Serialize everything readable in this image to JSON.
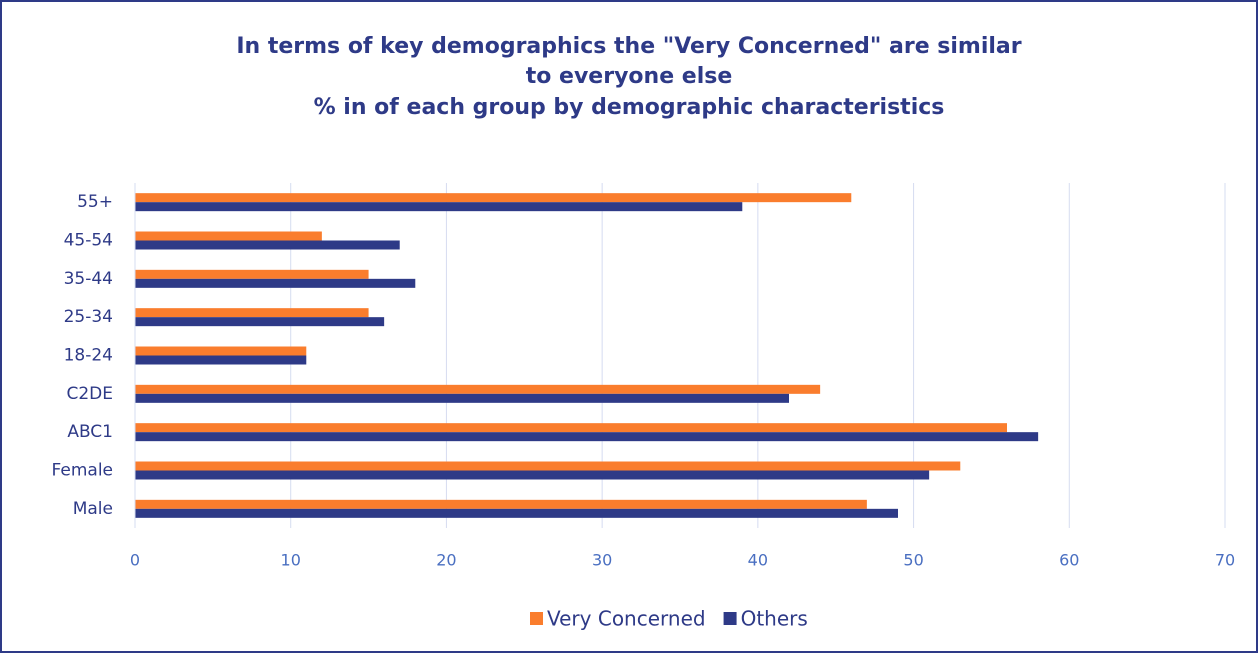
{
  "chart_data": {
    "type": "hbar",
    "title": [
      "In terms of key demographics the \"Very Concerned\" are similar",
      "to everyone else",
      "% in of each group by demographic characteristics"
    ],
    "categories": [
      "Male",
      "Female",
      "ABC1",
      "C2DE",
      "18-24",
      "25-34",
      "35-44",
      "45-54",
      "55+"
    ],
    "series": [
      {
        "name": "Very Concerned",
        "color": "#fa7d2d",
        "values": [
          47,
          53,
          56,
          44,
          11,
          15,
          15,
          12,
          46
        ]
      },
      {
        "name": "Others",
        "color": "#2e3a87",
        "values": [
          49,
          51,
          58,
          42,
          11,
          16,
          18,
          17,
          39
        ]
      }
    ],
    "xlim": [
      0,
      70
    ],
    "xticks": [
      0,
      10,
      20,
      30,
      40,
      50,
      60,
      70
    ],
    "grid": true,
    "legend": "bottom"
  }
}
